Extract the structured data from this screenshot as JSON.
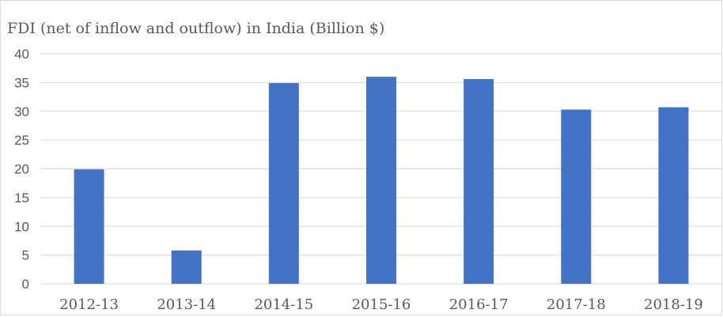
{
  "chart_data": {
    "type": "bar",
    "title": "FDI (net of inflow and outflow) in India (Billion $)",
    "categories": [
      "2012-13",
      "2013-14",
      "2014-15",
      "2015-16",
      "2016-17",
      "2017-18",
      "2018-19"
    ],
    "values": [
      19.9,
      5.8,
      34.9,
      36.0,
      35.6,
      30.3,
      30.7
    ],
    "xlabel": "",
    "ylabel": "",
    "ylim": [
      0,
      40
    ],
    "yticks": [
      0,
      5,
      10,
      15,
      20,
      25,
      30,
      35,
      40
    ],
    "grid": true,
    "legend": "none",
    "bar_color": "#4472c4",
    "grid_color": "#d9d9d9"
  }
}
